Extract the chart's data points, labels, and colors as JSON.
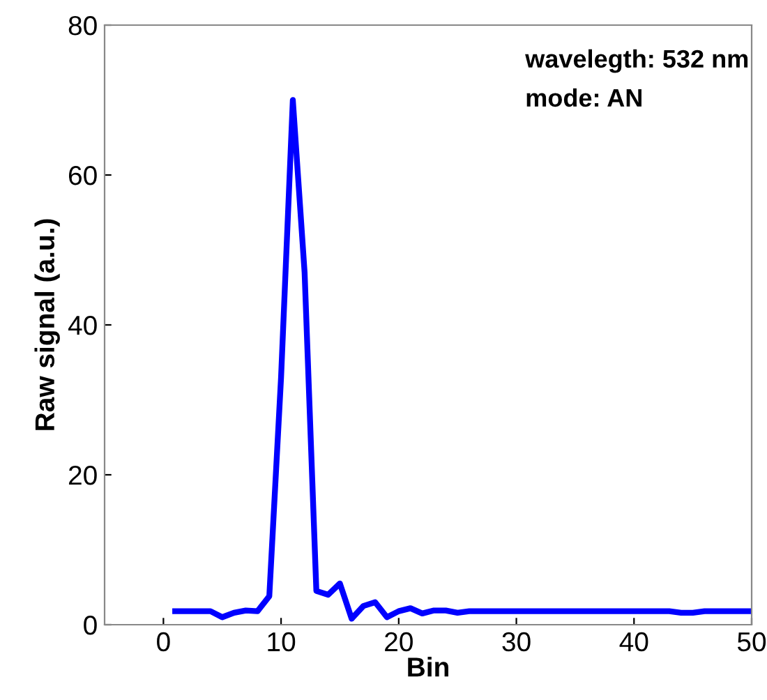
{
  "chart_data": {
    "type": "line",
    "xlabel": "Bin",
    "ylabel": "Raw signal (a.u.)",
    "x": [
      1,
      2,
      3,
      4,
      5,
      6,
      7,
      8,
      9,
      10,
      11,
      12,
      13,
      14,
      15,
      16,
      17,
      18,
      19,
      20,
      21,
      22,
      23,
      24,
      25,
      26,
      30,
      35,
      40,
      43,
      44,
      45,
      46,
      50
    ],
    "series": [
      {
        "color": "#0000ff",
        "values": [
          1.8,
          1.8,
          1.8,
          1.8,
          1.0,
          1.6,
          1.9,
          1.8,
          3.8,
          33,
          70,
          47,
          4.5,
          4.0,
          5.5,
          0.8,
          2.5,
          3.0,
          1.0,
          1.8,
          2.2,
          1.5,
          1.9,
          1.9,
          1.6,
          1.8,
          1.8,
          1.8,
          1.8,
          1.8,
          1.6,
          1.6,
          1.8,
          1.8
        ]
      }
    ],
    "xlim": [
      -5,
      50
    ],
    "xticks": [
      0,
      10,
      20,
      30,
      40,
      50
    ],
    "ylim": [
      0,
      80
    ],
    "yticks": [
      0,
      20,
      40,
      60,
      80
    ],
    "grid": false,
    "marker": "none",
    "line_style": "solid",
    "annotations": [
      "wavelegth: 532 nm",
      "mode: AN"
    ]
  }
}
